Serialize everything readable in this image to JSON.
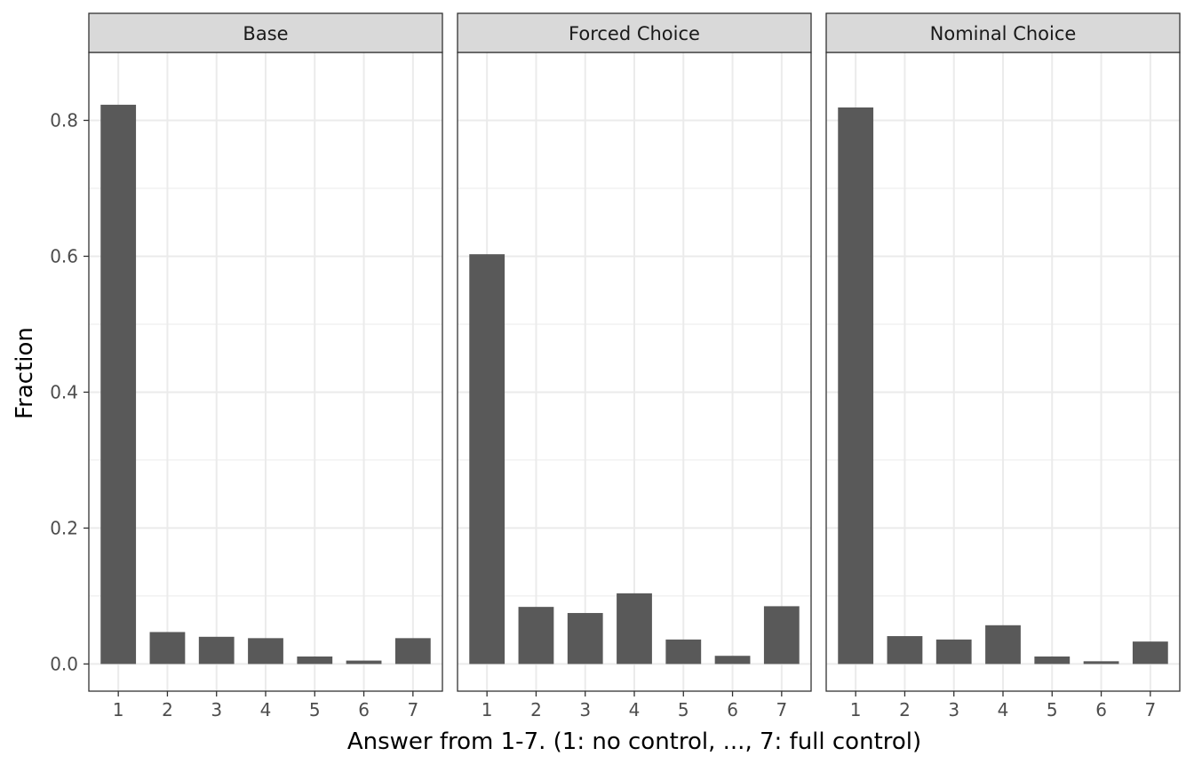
{
  "chart_data": {
    "type": "bar",
    "xlabel": "Answer from 1-7. (1: no control, ..., 7: full control)",
    "ylabel": "Fraction",
    "categories": [
      "1",
      "2",
      "3",
      "4",
      "5",
      "6",
      "7"
    ],
    "ylim": [
      -0.04,
      0.9
    ],
    "yticks": [
      0.0,
      0.2,
      0.4,
      0.6,
      0.8
    ],
    "ytick_labels": [
      "0.0",
      "0.2",
      "0.4",
      "0.6",
      "0.8"
    ],
    "grid": true,
    "legend": "none",
    "facets": [
      {
        "name": "Base",
        "values": [
          0.823,
          0.047,
          0.04,
          0.038,
          0.011,
          0.005,
          0.038
        ]
      },
      {
        "name": "Forced Choice",
        "values": [
          0.603,
          0.084,
          0.075,
          0.104,
          0.036,
          0.012,
          0.085
        ]
      },
      {
        "name": "Nominal Choice",
        "values": [
          0.819,
          0.041,
          0.036,
          0.057,
          0.011,
          0.004,
          0.033
        ]
      }
    ],
    "colors": {
      "bar": "#595959",
      "strip": "#d9d9d9",
      "panel_border": "#333333",
      "grid": "#ebebeb"
    }
  }
}
